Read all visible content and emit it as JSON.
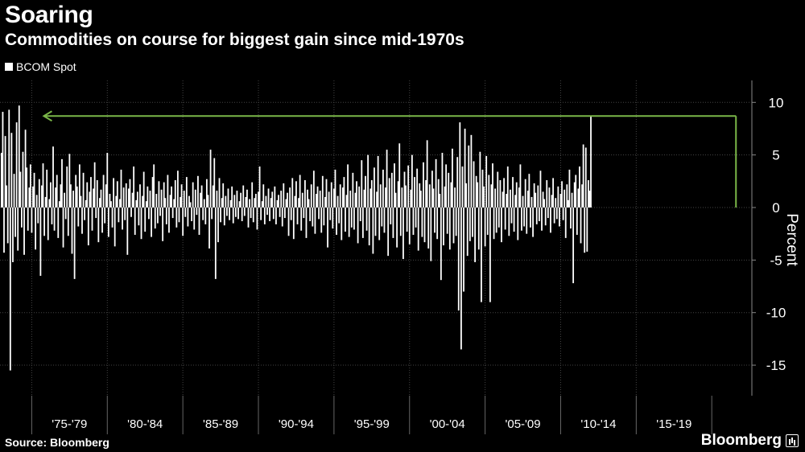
{
  "header": {
    "title": "Soaring",
    "subtitle": "Commodities on course for biggest gain since mid-1970s"
  },
  "legend": {
    "label": "BCOM Spot"
  },
  "footer": {
    "source": "Source: Bloomberg",
    "brand": "Bloomberg"
  },
  "colors": {
    "background": "#000000",
    "series": "#ffffff",
    "annotation": "#7ab648",
    "grid": "#444444"
  },
  "chart_data": {
    "type": "bar",
    "title": "Soaring",
    "subtitle": "Commodities on course for biggest gain since mid-1970s",
    "ylabel": "Percent",
    "ylim": [
      -18,
      12
    ],
    "yticks": [
      10,
      5,
      0,
      -5,
      -10,
      -15
    ],
    "xlim": [
      1972.9,
      2021.8
    ],
    "x_categories": [
      "'75-'79",
      "'80-'84",
      "'85-'89",
      "'90-'94",
      "'95-'99",
      "'00-'04",
      "'05-'09",
      "'10-'14",
      "'15-'19"
    ],
    "x_category_ranges": [
      [
        1975,
        1980
      ],
      [
        1980,
        1985
      ],
      [
        1985,
        1990
      ],
      [
        1990,
        1995
      ],
      [
        1995,
        2000
      ],
      [
        2000,
        2005
      ],
      [
        2005,
        2010
      ],
      [
        2010,
        2015
      ],
      [
        2015,
        2020
      ]
    ],
    "grid": true,
    "legend_position": "top-left",
    "series": [
      {
        "name": "BCOM Spot",
        "frequency": "monthly",
        "start_date": "1973-01",
        "values": [
          5.2,
          9.1,
          -4.3,
          6.8,
          2.1,
          -3.4,
          9.3,
          -15.5,
          7.1,
          -5.2,
          3.2,
          -2.8,
          8.1,
          -4.1,
          9.7,
          3.4,
          -1.9,
          5.3,
          -4.5,
          7.4,
          3.8,
          -2.2,
          1.9,
          4.1,
          -2.4,
          2.0,
          3.3,
          -4.0,
          1.2,
          -1.5,
          2.7,
          -6.5,
          2.1,
          4.2,
          -2.7,
          1.0,
          3.6,
          -3.1,
          0.8,
          2.4,
          -1.6,
          5.8,
          -2.2,
          1.9,
          3.1,
          -2.9,
          0.6,
          2.2,
          4.6,
          -3.8,
          1.4,
          -1.1,
          3.9,
          -2.7,
          5.1,
          2.2,
          -4.4,
          1.6,
          -6.8,
          3.1,
          2.0,
          -1.8,
          4.1,
          1.1,
          -2.5,
          3.3,
          -1.2,
          0.7,
          2.4,
          -3.6,
          1.5,
          2.9,
          -2.2,
          1.8,
          4.3,
          -1.0,
          2.6,
          -3.3,
          0.9,
          1.7,
          -2.4,
          3.1,
          -1.5,
          2.2,
          5.2,
          -2.8,
          1.3,
          0.6,
          -1.9,
          2.8,
          -3.7,
          1.1,
          2.5,
          -1.4,
          0.8,
          3.6,
          -2.1,
          1.9,
          -1.2,
          2.3,
          -4.5,
          1.8,
          2.7,
          -0.9,
          1.4,
          3.9,
          -2.6,
          0.7,
          1.5,
          -1.7,
          2.2,
          -3.0,
          1.1,
          3.4,
          -2.3,
          0.6,
          2.0,
          -1.1,
          1.6,
          -2.8,
          2.9,
          4.1,
          -2.0,
          1.3,
          -1.5,
          2.5,
          -0.8,
          1.7,
          -3.2,
          2.4,
          0.9,
          -1.6,
          3.1,
          -2.4,
          1.2,
          2.0,
          -1.0,
          0.8,
          2.6,
          -1.9,
          3.5,
          -1.4,
          1.0,
          2.2,
          -2.7,
          1.6,
          -0.9,
          2.9,
          -1.8,
          1.1,
          0.5,
          -1.3,
          2.4,
          -2.1,
          1.7,
          -0.7,
          3.0,
          -2.6,
          1.4,
          2.1,
          -1.2,
          0.8,
          -1.6,
          2.7,
          1.2,
          -3.9,
          5.5,
          -1.1,
          2.1,
          4.7,
          -6.8,
          1.6,
          -3.3,
          2.8,
          -1.4,
          0.9,
          2.3,
          -1.7,
          1.1,
          -0.8,
          1.8,
          -1.2,
          0.7,
          2.0,
          -1.5,
          1.2,
          -0.9,
          1.6,
          -1.1,
          0.6,
          1.4,
          -1.3,
          2.1,
          -0.8,
          1.0,
          1.7,
          -1.9,
          0.8,
          -1.0,
          2.4,
          -1.4,
          0.9,
          1.3,
          -2.1,
          1.5,
          3.9,
          -1.2,
          0.6,
          2.2,
          -1.6,
          1.1,
          -0.7,
          1.8,
          -1.3,
          0.9,
          1.5,
          -1.1,
          2.0,
          -1.6,
          0.7,
          1.2,
          -0.9,
          1.6,
          -1.8,
          2.3,
          -1.0,
          0.8,
          1.4,
          -2.7,
          1.9,
          -1.2,
          2.8,
          -3.0,
          1.1,
          2.5,
          -1.6,
          0.9,
          3.1,
          -2.2,
          1.4,
          -1.0,
          2.6,
          -2.9,
          1.7,
          0.8,
          -1.3,
          2.2,
          -1.8,
          3.5,
          -2.5,
          1.3,
          2.0,
          -1.1,
          1.6,
          -2.4,
          3.0,
          -1.7,
          1.0,
          2.7,
          -3.8,
          1.5,
          -1.2,
          2.4,
          -2.0,
          1.8,
          3.6,
          -2.6,
          1.1,
          -1.5,
          2.2,
          -3.1,
          1.9,
          2.9,
          -2.3,
          1.2,
          4.1,
          -2.8,
          1.6,
          -1.9,
          3.3,
          -2.1,
          1.4,
          2.5,
          -3.4,
          2.0,
          -1.3,
          4.5,
          -2.9,
          1.7,
          3.0,
          -2.2,
          5.0,
          -3.6,
          1.8,
          2.6,
          -4.4,
          3.8,
          -2.7,
          1.5,
          4.9,
          -3.1,
          2.2,
          -1.8,
          3.6,
          -2.4,
          1.9,
          5.5,
          -4.6,
          2.8,
          -1.6,
          3.3,
          -2.9,
          4.2,
          1.4,
          -3.8,
          2.5,
          6.1,
          -2.7,
          1.9,
          -4.9,
          3.4,
          2.1,
          -2.3,
          4.0,
          -3.5,
          1.7,
          5.0,
          -2.6,
          2.9,
          -1.9,
          3.7,
          -4.1,
          2.3,
          1.6,
          -2.8,
          4.3,
          -3.3,
          2.6,
          6.4,
          -3.9,
          2.2,
          -5.1,
          3.5,
          1.8,
          -2.4,
          4.6,
          -3.0,
          2.7,
          1.3,
          -6.9,
          5.2,
          -3.6,
          2.0,
          4.1,
          -2.5,
          3.3,
          -4.0,
          2.4,
          5.6,
          -3.4,
          1.9,
          -2.7,
          4.8,
          -9.8,
          8.1,
          -13.5,
          3.9,
          -8.0,
          7.5,
          2.3,
          -4.6,
          5.9,
          -3.2,
          6.9,
          -2.8,
          4.4,
          -5.2,
          3.0,
          2.4,
          -4.0,
          5.3,
          -9.0,
          3.6,
          2.0,
          -3.7,
          4.9,
          -2.6,
          3.1,
          -9.0,
          2.2,
          4.2,
          -3.0,
          1.8,
          -2.4,
          3.4,
          -1.9,
          2.6,
          -3.3,
          1.5,
          2.8,
          -2.1,
          1.3,
          3.9,
          -2.7,
          1.7,
          -1.5,
          2.9,
          -2.3,
          1.2,
          2.4,
          -3.1,
          1.9,
          4.1,
          -2.2,
          1.1,
          -1.8,
          2.7,
          -2.5,
          1.6,
          3.2,
          -1.9,
          1.0,
          -2.8,
          2.3,
          1.4,
          -1.6,
          2.1,
          -1.3,
          3.5,
          -2.2,
          1.5,
          0.8,
          -1.7,
          2.6,
          -1.0,
          1.9,
          -2.4,
          1.2,
          2.8,
          -1.5,
          0.9,
          -1.1,
          2.0,
          -1.8,
          1.3,
          2.5,
          -1.2,
          1.7,
          -2.9,
          2.2,
          0.7,
          3.6,
          -2.0,
          1.4,
          -7.2,
          2.4,
          3.1,
          -2.6,
          1.8,
          3.9,
          -3.4,
          2.2,
          6.0,
          -4.3,
          5.7,
          -4.2,
          2.6,
          1.6,
          8.7
        ]
      }
    ],
    "annotation": {
      "type": "arrow",
      "from_x": 2021.6,
      "to_x": 1975.8,
      "y": 8.7
    }
  }
}
